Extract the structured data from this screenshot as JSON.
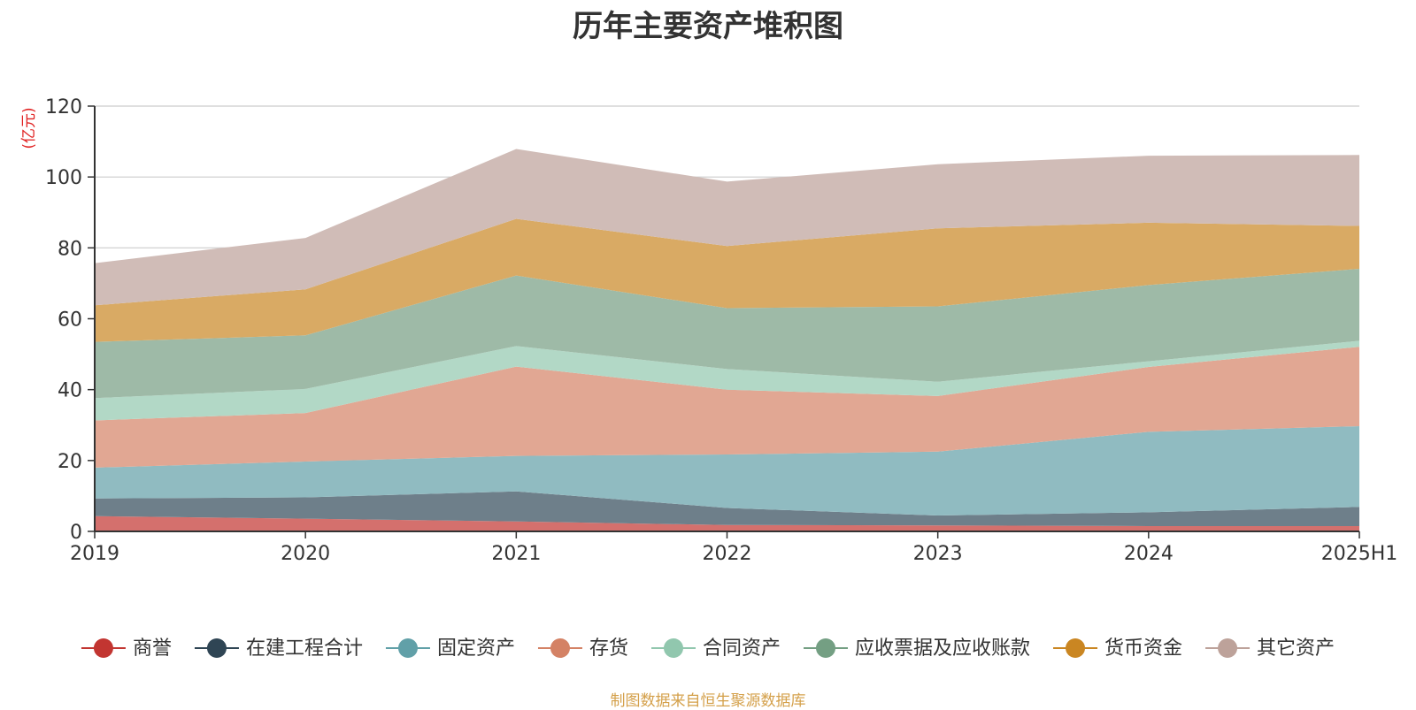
{
  "colors": {
    "axis": "#333333",
    "grid": "#cccccc",
    "unit": "#e02020"
  },
  "chart_data": {
    "type": "area",
    "stacked": true,
    "title": "历年主要资产堆积图",
    "ylabel": "(亿元)",
    "ylim": [
      0,
      120
    ],
    "yticks": [
      0,
      20,
      40,
      60,
      80,
      100,
      120
    ],
    "grid": true,
    "legend_position": "bottom",
    "x": [
      "2019",
      "2020",
      "2021",
      "2022",
      "2023",
      "2024",
      "2025H1"
    ],
    "series": [
      {
        "name": "商誉",
        "color": "#c23531",
        "fill": "#d4706d",
        "values": [
          4.3,
          3.6,
          2.8,
          1.8,
          1.7,
          1.5,
          1.5
        ]
      },
      {
        "name": "在建工程合计",
        "color": "#2f4554",
        "fill": "#6e7f8a",
        "values": [
          5.0,
          6.0,
          8.5,
          4.8,
          2.8,
          3.9,
          5.4
        ]
      },
      {
        "name": "固定资产",
        "color": "#61a0a8",
        "fill": "#90bbc1",
        "values": [
          8.7,
          10.1,
          10.0,
          15.1,
          18.0,
          22.7,
          22.8
        ]
      },
      {
        "name": "存货",
        "color": "#d48265",
        "fill": "#e1a793",
        "values": [
          13.3,
          13.7,
          25.2,
          18.3,
          15.7,
          18.3,
          22.4
        ]
      },
      {
        "name": "合同资产",
        "color": "#91c7ae",
        "fill": "#b2d8c6",
        "values": [
          6.3,
          6.8,
          5.8,
          5.8,
          4.0,
          1.6,
          1.7
        ]
      },
      {
        "name": "应收票据及应收账款",
        "color": "#749f83",
        "fill": "#9ebaa7",
        "values": [
          15.9,
          15.1,
          19.9,
          17.2,
          21.3,
          21.5,
          20.3
        ]
      },
      {
        "name": "货币资金",
        "color": "#ca8622",
        "fill": "#d9aa64",
        "values": [
          10.3,
          13.0,
          16.0,
          17.5,
          22.0,
          17.6,
          12.1
        ]
      },
      {
        "name": "其它资产",
        "color": "#bda29a",
        "fill": "#d0bcb7",
        "values": [
          11.9,
          14.5,
          19.7,
          18.2,
          18.1,
          18.9,
          20.0
        ]
      }
    ]
  },
  "footer": {
    "source": "制图数据来自恒生聚源数据库"
  }
}
